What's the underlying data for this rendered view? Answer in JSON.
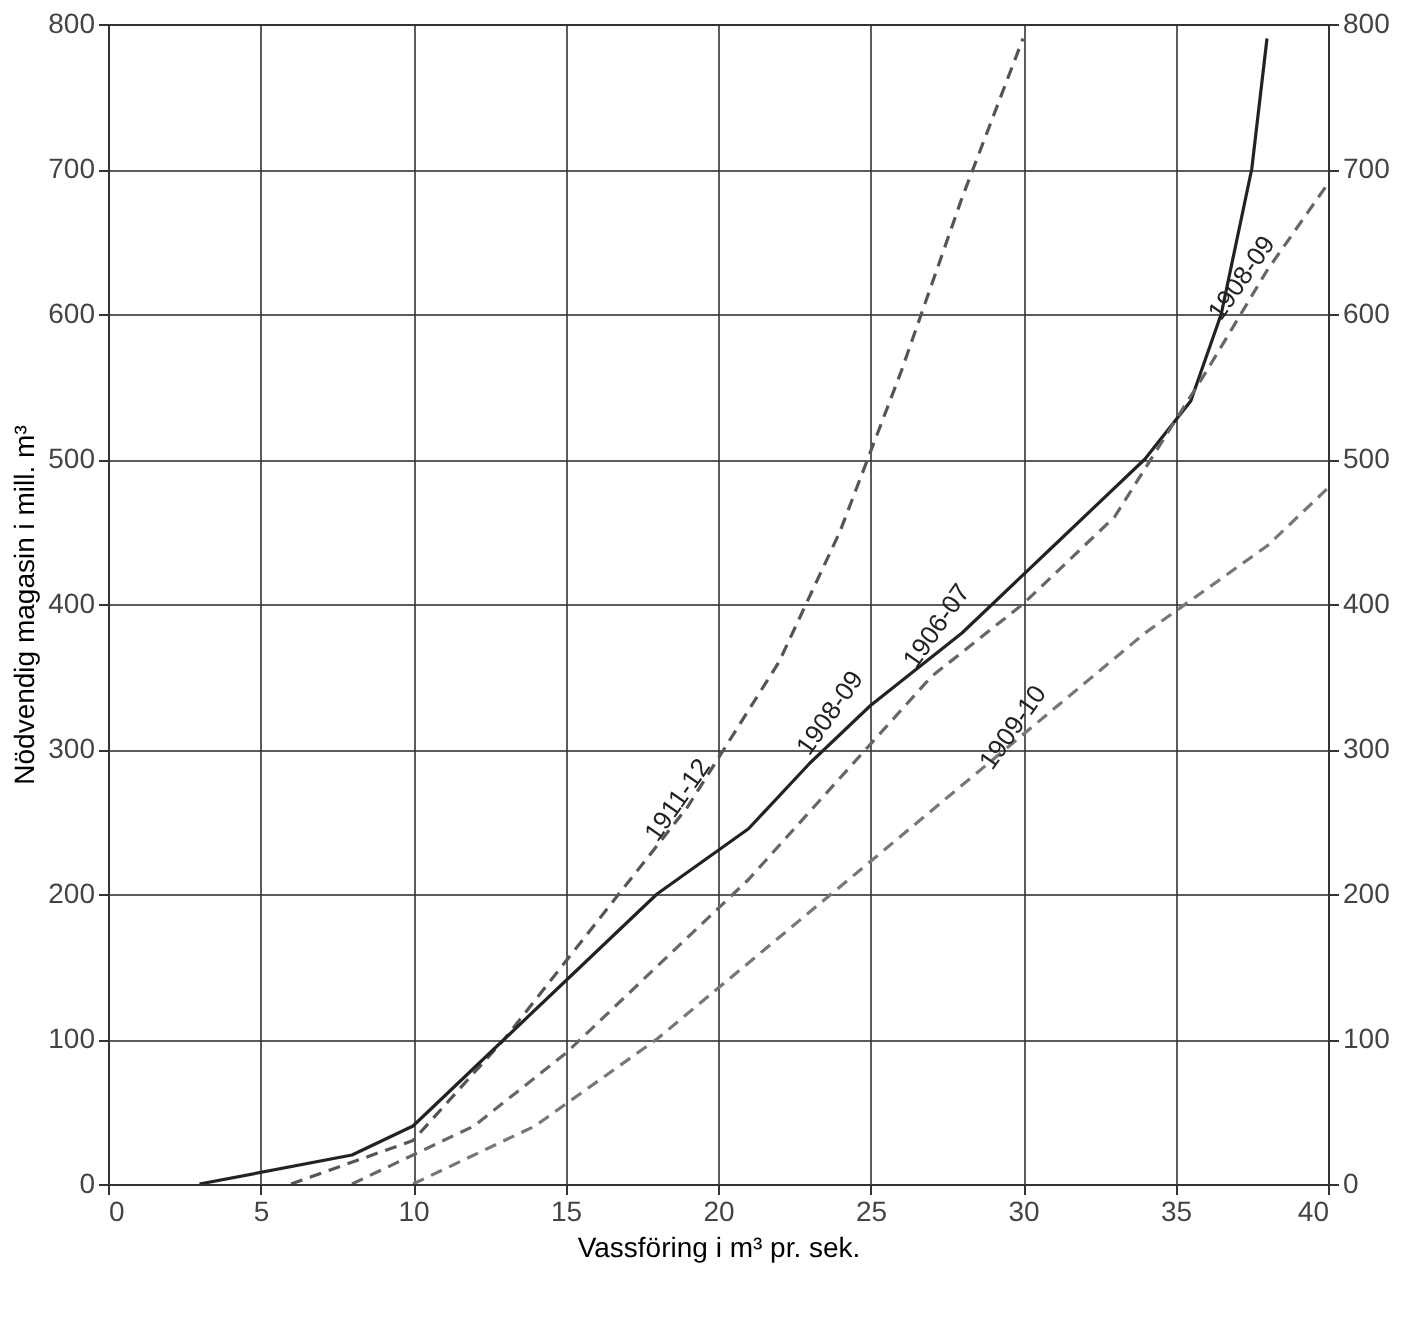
{
  "chart_data": {
    "type": "line",
    "xlabel": "Vassföring i m³ pr. sek.",
    "ylabel": "Nödvendig magasin i mill. m³",
    "xlim": [
      0,
      40
    ],
    "xticks": [
      0,
      5,
      10,
      15,
      20,
      25,
      30,
      35,
      40
    ],
    "ylim": [
      0,
      800
    ],
    "yticks": [
      0,
      100,
      200,
      300,
      400,
      500,
      600,
      700,
      800
    ],
    "y2lim": [
      0,
      800
    ],
    "y2ticks": [
      0,
      100,
      200,
      300,
      400,
      500,
      600,
      700,
      800
    ],
    "grid": true,
    "marker": "none",
    "series": [
      {
        "color": "#555555",
        "line_style": "dashed",
        "x": [
          6,
          10,
          13,
          16,
          19,
          22,
          24,
          26,
          28,
          30
        ],
        "values": [
          0,
          30,
          100,
          180,
          260,
          360,
          450,
          560,
          680,
          790
        ]
      },
      {
        "color": "#222222",
        "line_style": "solid",
        "x": [
          3,
          8,
          10,
          12,
          15,
          18,
          21,
          23,
          25,
          28,
          31,
          34,
          35.5,
          36.5,
          37.5,
          38
        ],
        "values": [
          0,
          20,
          40,
          80,
          140,
          200,
          245,
          290,
          330,
          380,
          440,
          500,
          540,
          600,
          700,
          790
        ]
      },
      {
        "color": "#666666",
        "line_style": "dashed",
        "x": [
          8,
          12,
          15,
          18,
          21,
          24,
          27,
          30,
          33,
          36,
          38,
          40
        ],
        "values": [
          0,
          40,
          90,
          150,
          210,
          280,
          350,
          400,
          460,
          560,
          630,
          690
        ]
      },
      {
        "color": "#777777",
        "line_style": "dashed",
        "x": [
          10,
          14,
          18,
          22,
          26,
          30,
          34,
          38,
          40
        ],
        "values": [
          0,
          40,
          100,
          170,
          240,
          310,
          380,
          440,
          480
        ]
      }
    ],
    "annotations": [
      {
        "text": "1911-12",
        "x": 19,
        "y": 260
      },
      {
        "text": "1908-09",
        "x": 24,
        "y": 320
      },
      {
        "text": "1906-07",
        "x": 27.5,
        "y": 380
      },
      {
        "text": "1909-10",
        "x": 30,
        "y": 310
      },
      {
        "text": "1908-09",
        "x": 37.5,
        "y": 620
      }
    ]
  }
}
